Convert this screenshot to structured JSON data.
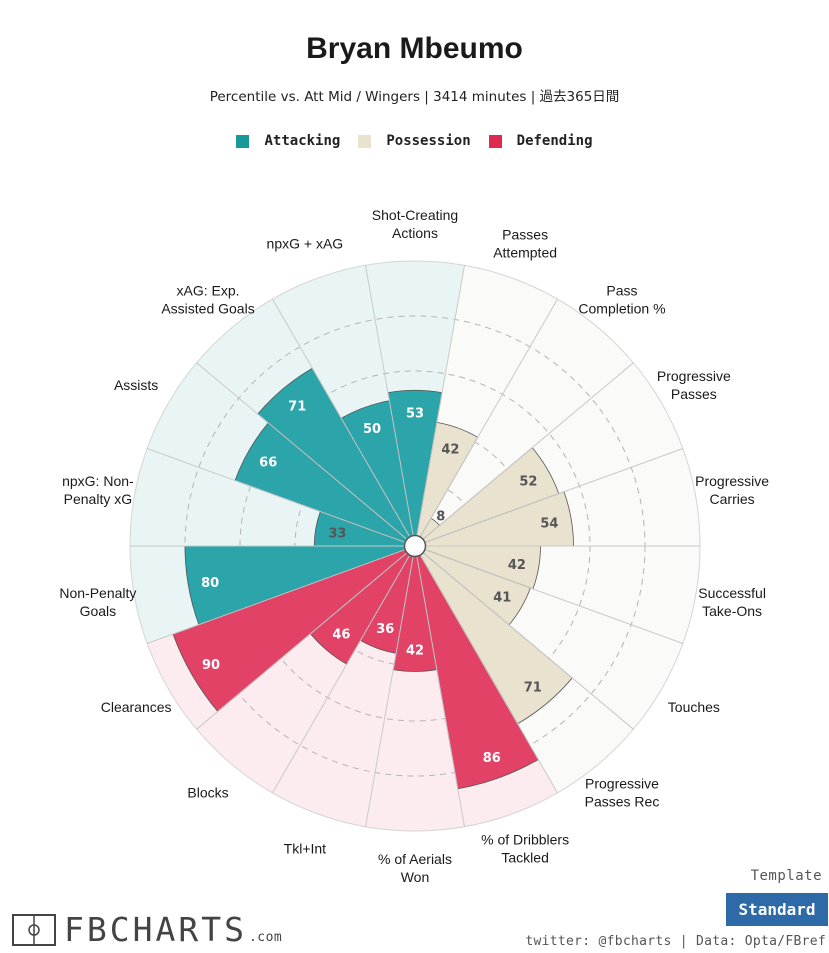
{
  "header": {
    "title": "Bryan Mbeumo",
    "subtitle": "Percentile vs. Att Mid / Wingers | 3414 minutes | 過去365日間"
  },
  "legend": [
    {
      "label": "Attacking",
      "color": "#17999b"
    },
    {
      "label": "Possession",
      "color": "#e8e2cf"
    },
    {
      "label": "Defending",
      "color": "#e0294f"
    }
  ],
  "chart_data": {
    "type": "polar-bar",
    "range": [
      0,
      100
    ],
    "categories": [
      {
        "label": [
          "Shot-Creating",
          "Actions"
        ],
        "value": 53,
        "group": "Attacking"
      },
      {
        "label": [
          "Passes",
          "Attempted"
        ],
        "value": 42,
        "group": "Possession"
      },
      {
        "label": [
          "Pass",
          "Completion %"
        ],
        "value": 8,
        "group": "Possession"
      },
      {
        "label": [
          "Progressive",
          "Passes"
        ],
        "value": 52,
        "group": "Possession"
      },
      {
        "label": [
          "Progressive",
          "Carries"
        ],
        "value": 54,
        "group": "Possession"
      },
      {
        "label": [
          "Successful",
          "Take-Ons"
        ],
        "value": 42,
        "group": "Possession"
      },
      {
        "label": [
          "Touches"
        ],
        "value": 41,
        "group": "Possession"
      },
      {
        "label": [
          "Progressive",
          "Passes Rec"
        ],
        "value": 71,
        "group": "Possession"
      },
      {
        "label": [
          "% of Dribblers",
          "Tackled"
        ],
        "value": 86,
        "group": "Defending"
      },
      {
        "label": [
          "% of Aerials",
          "Won"
        ],
        "value": 42,
        "group": "Defending"
      },
      {
        "label": [
          "Tkl+Int"
        ],
        "value": 36,
        "group": "Defending"
      },
      {
        "label": [
          "Blocks"
        ],
        "value": 46,
        "group": "Defending"
      },
      {
        "label": [
          "Clearances"
        ],
        "value": 90,
        "group": "Defending"
      },
      {
        "label": [
          "Non-Penalty",
          "Goals"
        ],
        "value": 80,
        "group": "Attacking"
      },
      {
        "label": [
          "npxG: Non-",
          "Penalty xG"
        ],
        "value": 33,
        "group": "Attacking"
      },
      {
        "label": [
          "Assists"
        ],
        "value": 66,
        "group": "Attacking"
      },
      {
        "label": [
          "xAG: Exp.",
          "Assisted Goals"
        ],
        "value": 71,
        "group": "Attacking"
      },
      {
        "label": [
          "npxG + xAG"
        ],
        "value": 50,
        "group": "Attacking"
      }
    ],
    "grid": true,
    "legend_position": "top-center"
  },
  "colors": {
    "Attacking": "#2ba5aa",
    "Possession": "#e8e2cf",
    "Defending": "#e34267",
    "Attacking_bg": "#e9f5f5",
    "Possession_bg": "#fafaf8",
    "Defending_bg": "#fdecef"
  },
  "footer": {
    "template_label": "Template",
    "template_button": "Standard",
    "credit": "twitter: @fbcharts | Data: Opta/FBref",
    "logo_text": "FBCHARTS",
    "logo_suffix": ".com"
  }
}
